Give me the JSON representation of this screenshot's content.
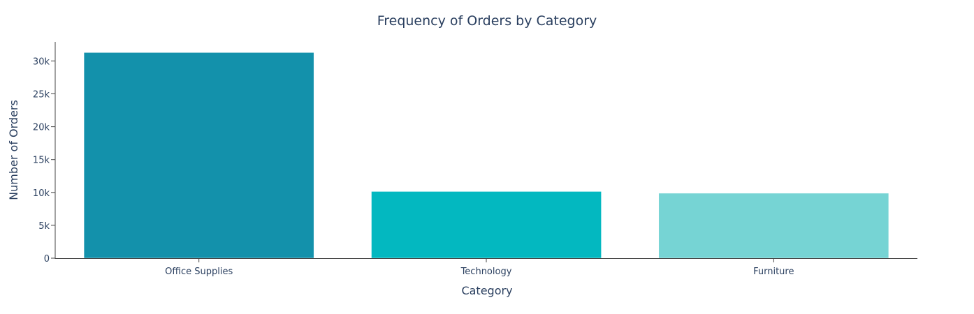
{
  "chart_data": {
    "type": "bar",
    "title": "Frequency of Orders by Category",
    "xlabel": "Category",
    "ylabel": "Number of Orders",
    "categories": [
      "Office Supplies",
      "Technology",
      "Furniture"
    ],
    "values": [
      31273,
      10141,
      9876
    ],
    "colors": [
      "#1391ab",
      "#03b8c0",
      "#76d4d4"
    ],
    "ylim": [
      0,
      32900
    ],
    "yticks": [
      0,
      5000,
      10000,
      15000,
      20000,
      25000,
      30000
    ],
    "ytick_labels": [
      "0",
      "5k",
      "10k",
      "15k",
      "20k",
      "25k",
      "30k"
    ],
    "grid": false,
    "legend": "none"
  }
}
